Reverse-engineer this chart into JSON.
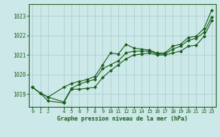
{
  "title": "Graphe pression niveau de la mer (hPa)",
  "bg_color": "#cce8e8",
  "grid_color": "#aacfcf",
  "line_color": "#1a5c1a",
  "marker_color": "#1a5c1a",
  "xlim": [
    -0.5,
    23.5
  ],
  "ylim": [
    1018.35,
    1023.6
  ],
  "yticks": [
    1019,
    1020,
    1021,
    1022,
    1023
  ],
  "xtick_positions": [
    0,
    1,
    2,
    4,
    5,
    6,
    7,
    8,
    9,
    10,
    11,
    12,
    13,
    14,
    15,
    16,
    17,
    18,
    19,
    20,
    21,
    22,
    23
  ],
  "xtick_labels": [
    "0",
    "1",
    "2",
    "4",
    "5",
    "6",
    "7",
    "8",
    "9",
    "10",
    "11",
    "12",
    "13",
    "14",
    "15",
    "16",
    "17",
    "18",
    "19",
    "20",
    "21",
    "22",
    "23"
  ],
  "series1_x": [
    0,
    1,
    2,
    4,
    5,
    6,
    7,
    8,
    9,
    10,
    11,
    12,
    13,
    14,
    15,
    16,
    17,
    18,
    19,
    20,
    21,
    22,
    23
  ],
  "series1_y": [
    1019.35,
    1019.05,
    1018.85,
    1019.35,
    1019.55,
    1019.65,
    1019.75,
    1019.9,
    1020.5,
    1021.1,
    1021.05,
    1021.55,
    1021.35,
    1021.3,
    1021.25,
    1021.1,
    1021.1,
    1021.45,
    1021.55,
    1021.9,
    1021.95,
    1022.35,
    1023.3
  ],
  "series2_x": [
    0,
    1,
    2,
    4,
    5,
    6,
    7,
    8,
    9,
    10,
    11,
    12,
    13,
    14,
    15,
    16,
    17,
    18,
    19,
    20,
    21,
    22,
    23
  ],
  "series2_y": [
    1019.35,
    1019.05,
    1018.65,
    1018.55,
    1019.25,
    1019.25,
    1019.3,
    1019.35,
    1019.85,
    1020.2,
    1020.5,
    1020.8,
    1021.0,
    1021.05,
    1021.1,
    1021.0,
    1021.0,
    1021.1,
    1021.2,
    1021.45,
    1021.5,
    1021.95,
    1022.75
  ],
  "series3_x": [
    0,
    1,
    2,
    4,
    5,
    6,
    7,
    8,
    9,
    10,
    11,
    12,
    13,
    14,
    15,
    16,
    17,
    18,
    19,
    20,
    21,
    22,
    23
  ],
  "series3_y": [
    1019.35,
    1019.05,
    1018.85,
    1018.6,
    1019.3,
    1019.5,
    1019.65,
    1019.75,
    1020.3,
    1020.5,
    1020.7,
    1021.1,
    1021.2,
    1021.2,
    1021.2,
    1021.05,
    1021.05,
    1021.3,
    1021.45,
    1021.75,
    1021.85,
    1022.15,
    1022.95
  ]
}
